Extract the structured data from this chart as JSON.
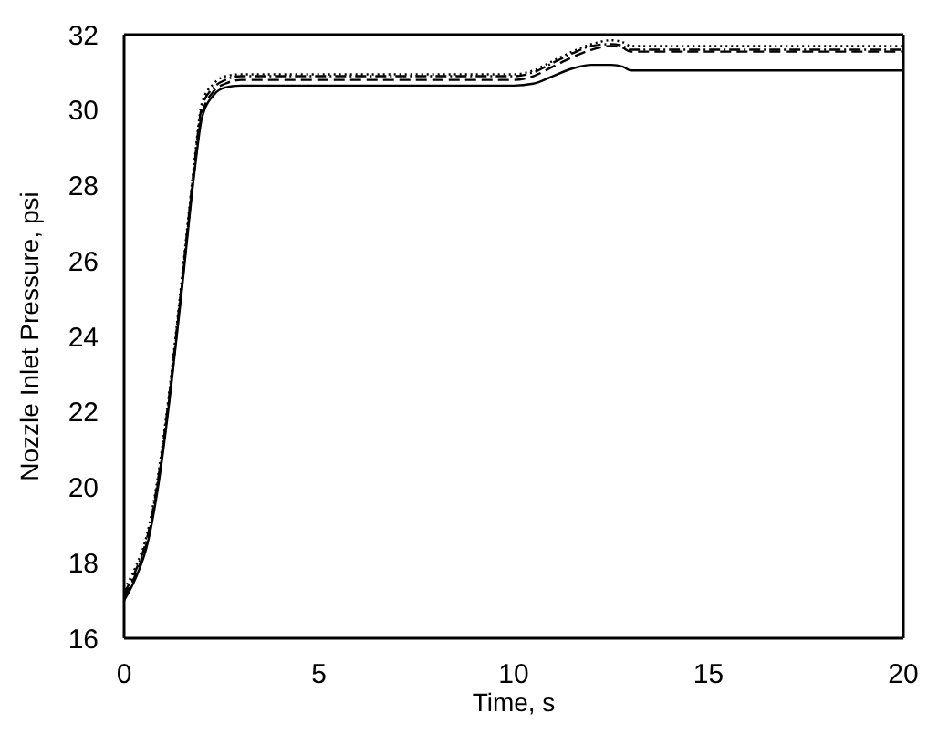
{
  "chart_data": {
    "type": "line",
    "xlabel": "Time, s",
    "ylabel": "Nozzle Inlet Pressure, psi",
    "x": [
      0,
      0.3,
      0.6,
      0.9,
      1.2,
      1.5,
      1.8,
      2.0,
      2.3,
      2.6,
      3,
      10,
      10.5,
      11,
      11.5,
      12,
      12.5,
      12.8,
      13,
      14,
      20
    ],
    "series": [
      {
        "color": "#000000",
        "line_style": "dotted",
        "values": [
          17.3,
          17.9,
          18.8,
          20.5,
          22.9,
          25.7,
          28.6,
          30.2,
          30.7,
          30.9,
          30.95,
          30.95,
          31.05,
          31.3,
          31.55,
          31.75,
          31.85,
          31.8,
          31.7,
          31.7,
          31.7
        ]
      },
      {
        "color": "#000000",
        "line_style": "dashed",
        "values": [
          17.1,
          17.7,
          18.6,
          20.3,
          22.7,
          25.5,
          28.4,
          29.9,
          30.5,
          30.7,
          30.8,
          30.8,
          30.9,
          31.15,
          31.4,
          31.6,
          31.7,
          31.65,
          31.55,
          31.55,
          31.55
        ]
      },
      {
        "color": "#000000",
        "line_style": "dashdot",
        "values": [
          17.2,
          17.8,
          18.7,
          20.4,
          22.8,
          25.6,
          28.5,
          30.1,
          30.6,
          30.8,
          30.9,
          30.9,
          31.0,
          31.25,
          31.5,
          31.7,
          31.75,
          31.7,
          31.6,
          31.6,
          31.6
        ]
      },
      {
        "color": "#000000",
        "line_style": "solid",
        "values": [
          17.0,
          17.6,
          18.5,
          20.2,
          22.6,
          25.4,
          28.3,
          29.8,
          30.4,
          30.6,
          30.65,
          30.65,
          30.7,
          30.9,
          31.1,
          31.2,
          31.2,
          31.15,
          31.05,
          31.05,
          31.05
        ]
      }
    ],
    "xlim": [
      0,
      20
    ],
    "xticks": [
      0,
      5,
      10,
      15,
      20
    ],
    "ylim": [
      16,
      32
    ],
    "yticks": [
      16,
      18,
      20,
      22,
      24,
      26,
      28,
      30,
      32
    ],
    "grid": false,
    "marker": "none"
  }
}
